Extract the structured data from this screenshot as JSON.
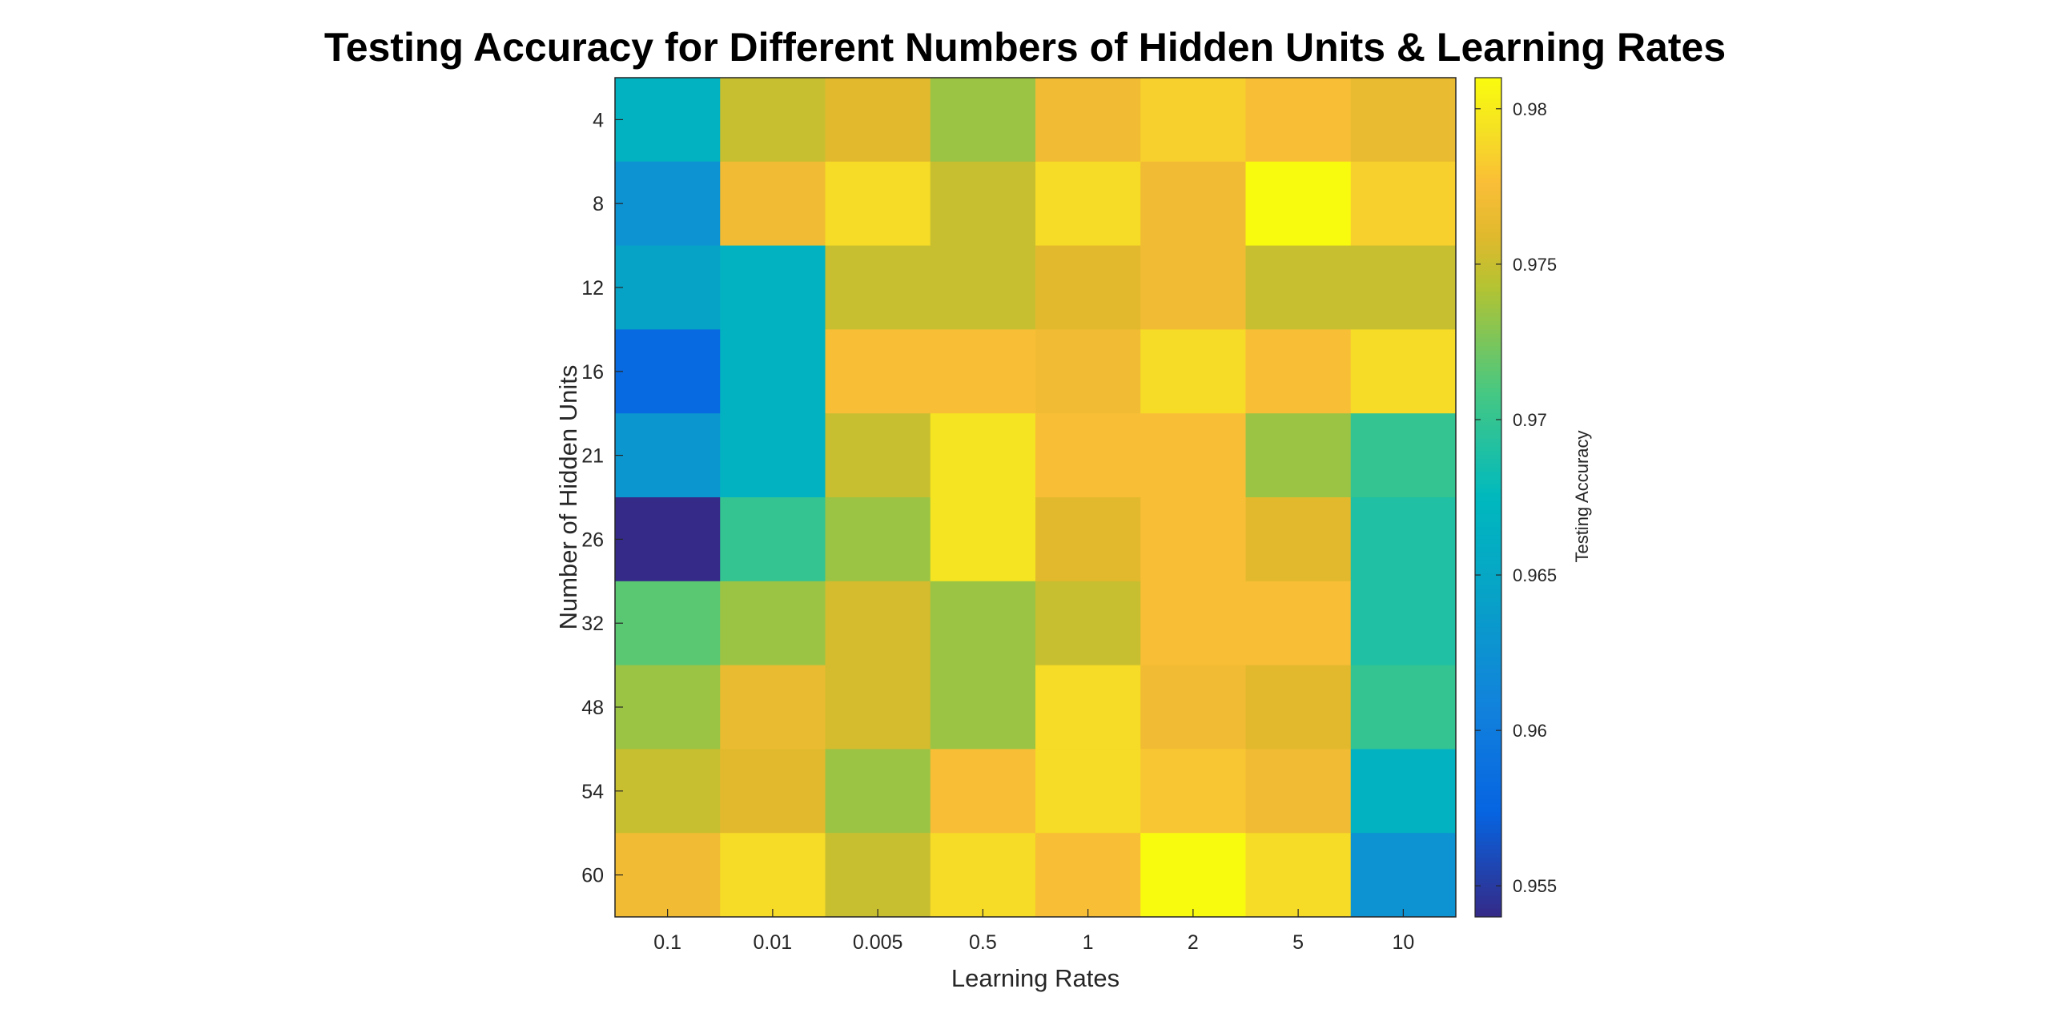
{
  "chart_data": {
    "type": "heatmap",
    "title": "Testing Accuracy for Different Numbers of Hidden Units & Learning Rates",
    "xlabel": "Learning Rates",
    "ylabel": "Number of Hidden Units",
    "colorbar_label": "Testing Accuracy",
    "x_categories": [
      "0.1",
      "0.01",
      "0.005",
      "0.5",
      "1",
      "2",
      "5",
      "10"
    ],
    "y_categories": [
      "4",
      "8",
      "12",
      "16",
      "21",
      "26",
      "32",
      "48",
      "54",
      "60"
    ],
    "values": [
      [
        0.9665,
        0.975,
        0.976,
        0.9735,
        0.977,
        0.9785,
        0.9775,
        0.9765
      ],
      [
        0.9625,
        0.977,
        0.979,
        0.975,
        0.979,
        0.977,
        0.981,
        0.9785
      ],
      [
        0.9645,
        0.9665,
        0.975,
        0.975,
        0.976,
        0.977,
        0.975,
        0.975
      ],
      [
        0.958,
        0.9665,
        0.9775,
        0.9775,
        0.977,
        0.979,
        0.9775,
        0.979
      ],
      [
        0.963,
        0.9665,
        0.975,
        0.9795,
        0.9775,
        0.9775,
        0.9735,
        0.97
      ],
      [
        0.954,
        0.97,
        0.9735,
        0.9795,
        0.976,
        0.9775,
        0.976,
        0.969
      ],
      [
        0.9715,
        0.9735,
        0.9755,
        0.9735,
        0.975,
        0.9775,
        0.9775,
        0.969
      ],
      [
        0.9735,
        0.9765,
        0.9755,
        0.9735,
        0.979,
        0.977,
        0.976,
        0.97
      ],
      [
        0.975,
        0.976,
        0.9735,
        0.9775,
        0.979,
        0.978,
        0.977,
        0.9665
      ],
      [
        0.977,
        0.979,
        0.975,
        0.979,
        0.9775,
        0.981,
        0.979,
        0.9625
      ]
    ],
    "color_range": [
      0.954,
      0.981
    ],
    "colorbar_ticks": [
      0.955,
      0.96,
      0.965,
      0.97,
      0.975,
      0.98
    ],
    "colormap": "parula"
  }
}
